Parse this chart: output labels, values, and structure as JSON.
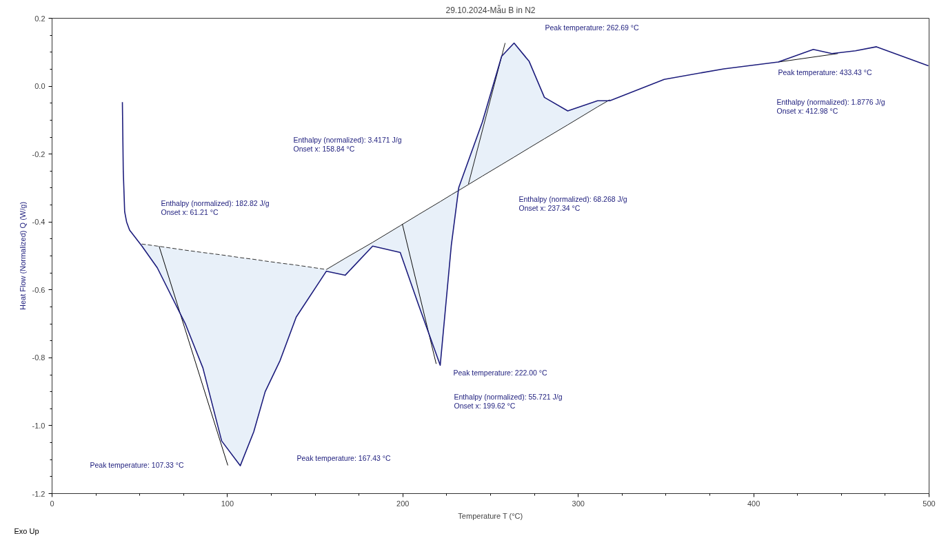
{
  "chart_data": {
    "type": "line",
    "title": "29.10.2024-Mẫu B in N2",
    "xlabel": "Temperature T (°C)",
    "ylabel": "Heat Flow (Normalized) Q (W/g)",
    "xlim": [
      0,
      500
    ],
    "ylim": [
      -1.2,
      0.2
    ],
    "xticks": [
      0,
      {
        "value": 25,
        "label": null
      },
      {
        "value": 50,
        "label": null
      },
      {
        "value": 75,
        "label": null
      },
      100,
      {
        "value": 125,
        "label": null
      },
      {
        "value": 150,
        "label": null
      },
      {
        "value": 175,
        "label": null
      },
      200,
      {
        "value": 225,
        "label": null
      },
      {
        "value": 250,
        "label": null
      },
      {
        "value": 275,
        "label": null
      },
      300,
      {
        "value": 325,
        "label": null
      },
      {
        "value": 350,
        "label": null
      },
      {
        "value": 375,
        "label": null
      },
      400,
      {
        "value": 425,
        "label": null
      },
      {
        "value": 450,
        "label": null
      },
      {
        "value": 475,
        "label": null
      },
      500
    ],
    "yticks": [
      -1.2,
      {
        "value": -1.15,
        "label": null
      },
      {
        "value": -1.1,
        "label": null
      },
      {
        "value": -1.05,
        "label": null
      },
      {
        "value": -1.0,
        "label": "-1.0"
      },
      {
        "value": -0.95,
        "label": null
      },
      {
        "value": -0.9,
        "label": null
      },
      {
        "value": -0.85,
        "label": null
      },
      -0.8,
      {
        "value": -0.75,
        "label": null
      },
      {
        "value": -0.7,
        "label": null
      },
      {
        "value": -0.65,
        "label": null
      },
      -0.6,
      {
        "value": -0.55,
        "label": null
      },
      {
        "value": -0.5,
        "label": null
      },
      {
        "value": -0.45,
        "label": null
      },
      -0.4,
      {
        "value": -0.35,
        "label": null
      },
      {
        "value": -0.3,
        "label": null
      },
      {
        "value": -0.25,
        "label": null
      },
      -0.2,
      {
        "value": -0.15,
        "label": null
      },
      {
        "value": -0.1,
        "label": null
      },
      {
        "value": -0.05,
        "label": null
      },
      {
        "value": 0.0,
        "label": "0.0"
      },
      {
        "value": 0.05,
        "label": null
      },
      {
        "value": 0.1,
        "label": null
      },
      {
        "value": 0.15,
        "label": null
      },
      0.2
    ],
    "grid": false,
    "series": [
      {
        "color": "#1c1c7c",
        "line_style": "solid",
        "x": [
          40.1,
          40.6,
          41.4,
          42.5,
          44.2,
          51.1,
          60,
          75.9,
          86,
          96.7,
          107.3,
          115,
          121.5,
          130,
          139.2,
          156.4,
          167.1,
          182.8,
          198.5,
          209,
          221.3,
          227.6,
          231.9,
          245.3,
          256.3,
          263.4,
          272,
          280.7,
          294,
          311,
          318,
          349,
          383,
          414,
          434,
          444.6,
          458,
          470,
          499.6
        ],
        "values": [
          -0.047,
          -0.25,
          -0.37,
          -0.4,
          -0.424,
          -0.47,
          -0.535,
          -0.699,
          -0.83,
          -1.045,
          -1.118,
          -1.018,
          -0.9,
          -0.808,
          -0.68,
          -0.545,
          -0.557,
          -0.471,
          -0.49,
          -0.645,
          -0.822,
          -0.47,
          -0.298,
          -0.106,
          0.088,
          0.127,
          0.073,
          -0.033,
          -0.073,
          -0.043,
          -0.043,
          0.02,
          0.051,
          0.071,
          0.108,
          0.096,
          0.104,
          0.116,
          0.06
        ]
      },
      {
        "color": "#303030",
        "line_style": "dashed",
        "x": [
          51.1,
          60,
          75.9,
          86,
          96.7,
          107.3,
          115,
          121.5,
          130,
          139.2,
          156.4
        ],
        "values": [
          -0.465,
          -0.471,
          -0.483,
          -0.49,
          -0.497,
          -0.505,
          -0.51,
          -0.515,
          -0.521,
          -0.527,
          -0.54
        ],
        "lower": [
          -0.47,
          -0.535,
          -0.699,
          -0.83,
          -1.045,
          -1.118,
          -1.018,
          -0.9,
          -0.808,
          -0.68,
          -0.545
        ],
        "upper": [
          -0.465,
          -0.471,
          -0.483,
          -0.49,
          -0.497,
          -0.505,
          -0.51,
          -0.515,
          -0.521,
          -0.527,
          -0.54
        ]
      },
      {
        "color": "#202020",
        "line_style": "solid",
        "x": [
          156.4,
          167.1,
          182.8,
          198.5,
          209,
          221.3,
          227.6,
          231.9,
          245.3,
          256.3,
          263.4,
          272,
          280.7,
          294,
          311,
          318
        ],
        "values": [
          -0.54,
          -0.507,
          -0.46,
          -0.411,
          -0.378,
          -0.34,
          -0.32,
          -0.307,
          -0.265,
          -0.231,
          -0.209,
          -0.182,
          -0.155,
          -0.114,
          -0.061,
          -0.04
        ],
        "lower": [
          -0.545,
          -0.557,
          -0.471,
          -0.49,
          -0.645,
          -0.822,
          -0.47,
          -0.307,
          -0.265,
          -0.231,
          -0.209,
          -0.182,
          -0.155,
          -0.114,
          -0.061,
          -0.043
        ],
        "upper": [
          -0.54,
          -0.507,
          -0.46,
          -0.411,
          -0.378,
          -0.34,
          -0.32,
          -0.298,
          -0.106,
          0.088,
          0.127,
          0.073,
          -0.033,
          -0.073,
          -0.043,
          -0.04
        ]
      },
      {
        "color": "#101010",
        "line_style": "solid",
        "x": [
          414,
          448
        ],
        "values": [
          0.071,
          0.096
        ]
      },
      {
        "color": "#000000",
        "line_style": "solid",
        "x": [
          61,
          100.2
        ],
        "values": [
          -0.471,
          -1.117
        ]
      },
      {
        "color": "#080808",
        "line_style": "solid",
        "x": [
          199.7,
          219
        ],
        "values": [
          -0.406,
          -0.818
        ]
      },
      {
        "color": "#181818",
        "line_style": "solid",
        "x": [
          237.4,
          258.3
        ],
        "values": [
          -0.288,
          0.127
        ]
      }
    ],
    "annotations": [
      "Peak temperature: 107.33 °C",
      "Peak temperature: 167.43 °C",
      "Peak temperature: 222.00 °C",
      "Enthalpy (normalized): 55.721 J/g",
      "Onset x: 199.62 °C",
      "Peak temperature: 262.69 °C",
      "Enthalpy (normalized): 68.268 J/g",
      "Onset x: 237.34 °C",
      "Peak temperature: 433.43 °C",
      "Enthalpy (normalized): 1.8776 J/g",
      "Onset x: 412.98 °C",
      "Enthalpy (normalized): 3.4171 J/g",
      "Onset x: 158.84 °C",
      "Enthalpy (normalized): 182.82 J/g",
      "Onset x: 61.21 °C",
      "Exo Up"
    ]
  }
}
